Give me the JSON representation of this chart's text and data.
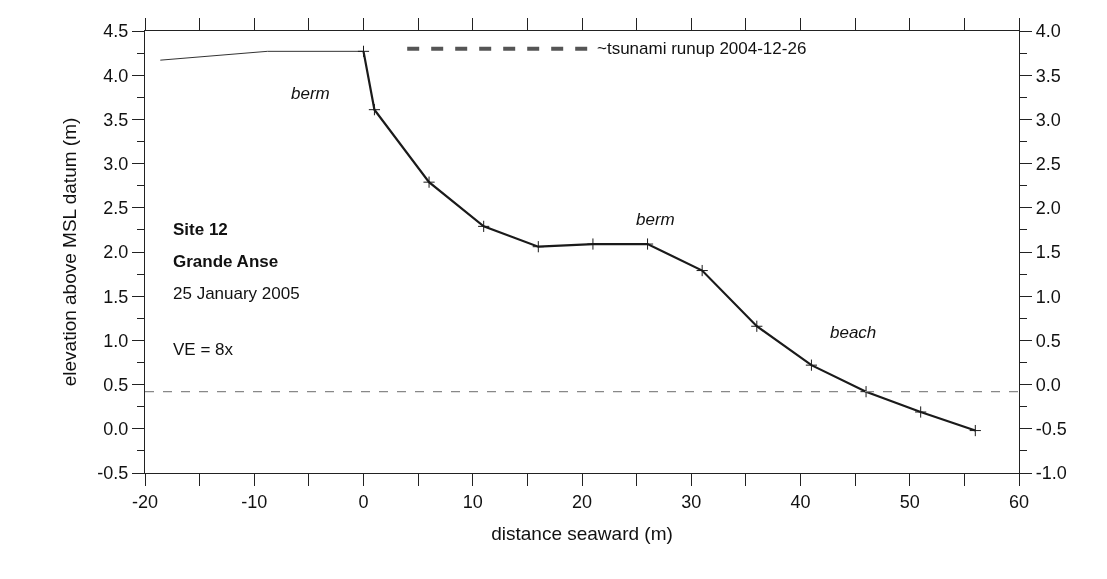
{
  "chart_data": {
    "type": "line",
    "xlabel": "distance seaward (m)",
    "ylabel": "elevation above MSL datum (m)",
    "series": [
      {
        "color": "#333333",
        "x": [
          -18.6,
          -8.8,
          0
        ],
        "values": [
          4.17,
          4.27,
          4.27
        ],
        "marker": "none",
        "line_style": "solid"
      },
      {
        "color": "#1a1a1a",
        "x": [
          0,
          1,
          6,
          11,
          16,
          21,
          26,
          31,
          36,
          41,
          46,
          51,
          56
        ],
        "values": [
          4.27,
          3.61,
          2.79,
          2.29,
          2.06,
          2.09,
          2.09,
          1.79,
          1.16,
          0.72,
          0.42,
          0.19,
          -0.02
        ],
        "marker": "cross",
        "line_style": "solid"
      },
      {
        "name": "~tsunami runup 2004-12-26",
        "color": "#555555",
        "x": [
          4,
          20.5
        ],
        "values": [
          4.3,
          4.3
        ],
        "marker": "none",
        "line_style": "dashed"
      }
    ],
    "ref_lines": [
      {
        "axis": "y",
        "value": 0.42,
        "color": "#888888",
        "line_style": "dashed"
      }
    ],
    "annotations": [
      "berm",
      "berm",
      "beach",
      "Site 12",
      "Grande Anse",
      "25 January 2005",
      "VE = 8x"
    ],
    "xlim": [
      -20,
      60
    ],
    "xticks": [
      -20,
      -10,
      0,
      10,
      20,
      30,
      40,
      50,
      60
    ],
    "ylim": [
      -0.5,
      4.5
    ],
    "yticks": [
      -0.5,
      {
        "value": 0,
        "label": "0.0"
      },
      0.5,
      {
        "value": 1,
        "label": "1.0"
      },
      1.5,
      {
        "value": 2,
        "label": "2.0"
      },
      2.5,
      {
        "value": 3,
        "label": "3.0"
      },
      3.5,
      {
        "value": 4,
        "label": "4.0"
      },
      4.5
    ],
    "y2lim": [
      -1.0,
      4.0
    ],
    "y2ticks": [
      {
        "value": -1,
        "label": "-1.0"
      },
      -0.5,
      {
        "value": 0,
        "label": "0.0"
      },
      0.5,
      {
        "value": 1,
        "label": "1.0"
      },
      1.5,
      {
        "value": 2,
        "label": "2.0"
      },
      2.5,
      {
        "value": 3,
        "label": "3.0"
      },
      3.5,
      {
        "value": 4,
        "label": "4.0"
      }
    ],
    "legend": false
  }
}
